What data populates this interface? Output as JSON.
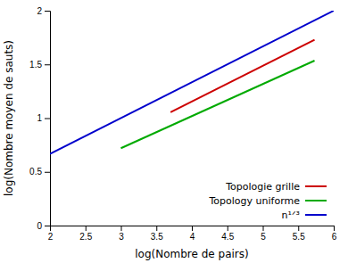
{
  "chart_data": {
    "type": "line",
    "xlabel": "log(Nombre de pairs)",
    "ylabel": "log(Nombre moyen de sauts)",
    "xlim": [
      2,
      6
    ],
    "ylim": [
      0,
      2
    ],
    "xticks": [
      2,
      2.5,
      3,
      3.5,
      4,
      4.5,
      5,
      5.5,
      6
    ],
    "yticks": [
      0,
      0.5,
      1,
      1.5,
      2
    ],
    "grid": false,
    "legend": "lower right",
    "series": [
      {
        "name": "Topologie grille",
        "color": "#cc0000",
        "x": [
          3.7,
          5.73
        ],
        "values": [
          1.055,
          1.73
        ]
      },
      {
        "name": "Topology uniforme",
        "color": "#00aa00",
        "x": [
          3.0,
          5.73
        ],
        "values": [
          0.72,
          1.535
        ]
      },
      {
        "name": "n¹ᐟ³",
        "color": "#0000cc",
        "x": [
          2,
          6
        ],
        "values": [
          0.6667,
          2.0
        ]
      }
    ]
  }
}
